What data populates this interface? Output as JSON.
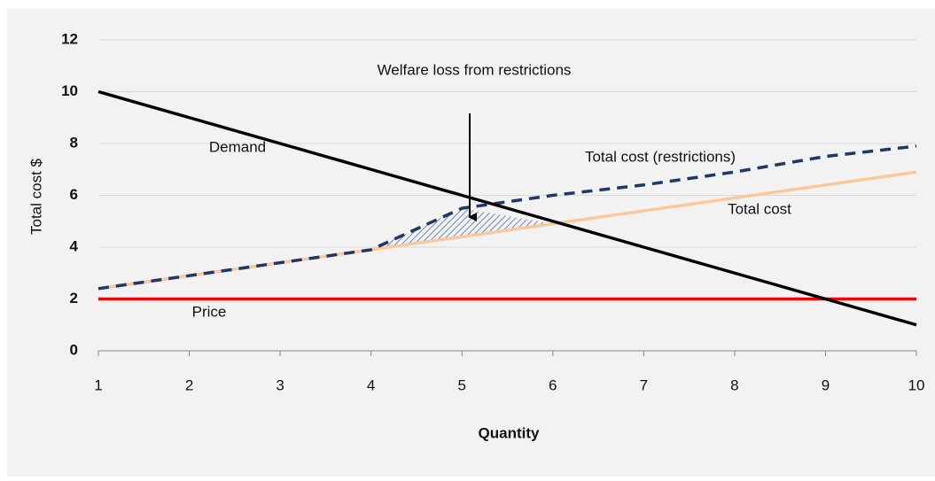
{
  "chart_data": {
    "type": "line",
    "annotation": "Welfare loss from restrictions",
    "x_label": "Quantity",
    "y_label": "Total cost $",
    "x": [
      1,
      2,
      3,
      4,
      5,
      6,
      7,
      8,
      9,
      10
    ],
    "series": [
      {
        "name": "Demand",
        "color": "#000000",
        "values": [
          10,
          9,
          8,
          7,
          6,
          5,
          4,
          3,
          2,
          1
        ]
      },
      {
        "name": "Total cost (restrictions)",
        "color": "#1f3864",
        "dashed": true,
        "values": [
          2.4,
          2.9,
          3.4,
          3.9,
          5.5,
          6.0,
          6.4,
          6.9,
          7.5,
          7.9
        ]
      },
      {
        "name": "Total cost",
        "color": "#f9c89b",
        "values": [
          2.4,
          2.9,
          3.4,
          3.9,
          4.4,
          4.9,
          5.4,
          5.9,
          6.4,
          6.9
        ]
      },
      {
        "name": "Price",
        "color": "#ff0000",
        "values": [
          2,
          2,
          2,
          2,
          2,
          2,
          2,
          2,
          2,
          2
        ]
      }
    ],
    "xlim": [
      1,
      10
    ],
    "xticks": [
      1,
      2,
      3,
      4,
      5,
      6,
      7,
      8,
      9,
      10
    ],
    "ylim": [
      0,
      12
    ],
    "yticks": [
      0,
      2,
      4,
      6,
      8,
      10,
      12
    ],
    "grid": true
  }
}
